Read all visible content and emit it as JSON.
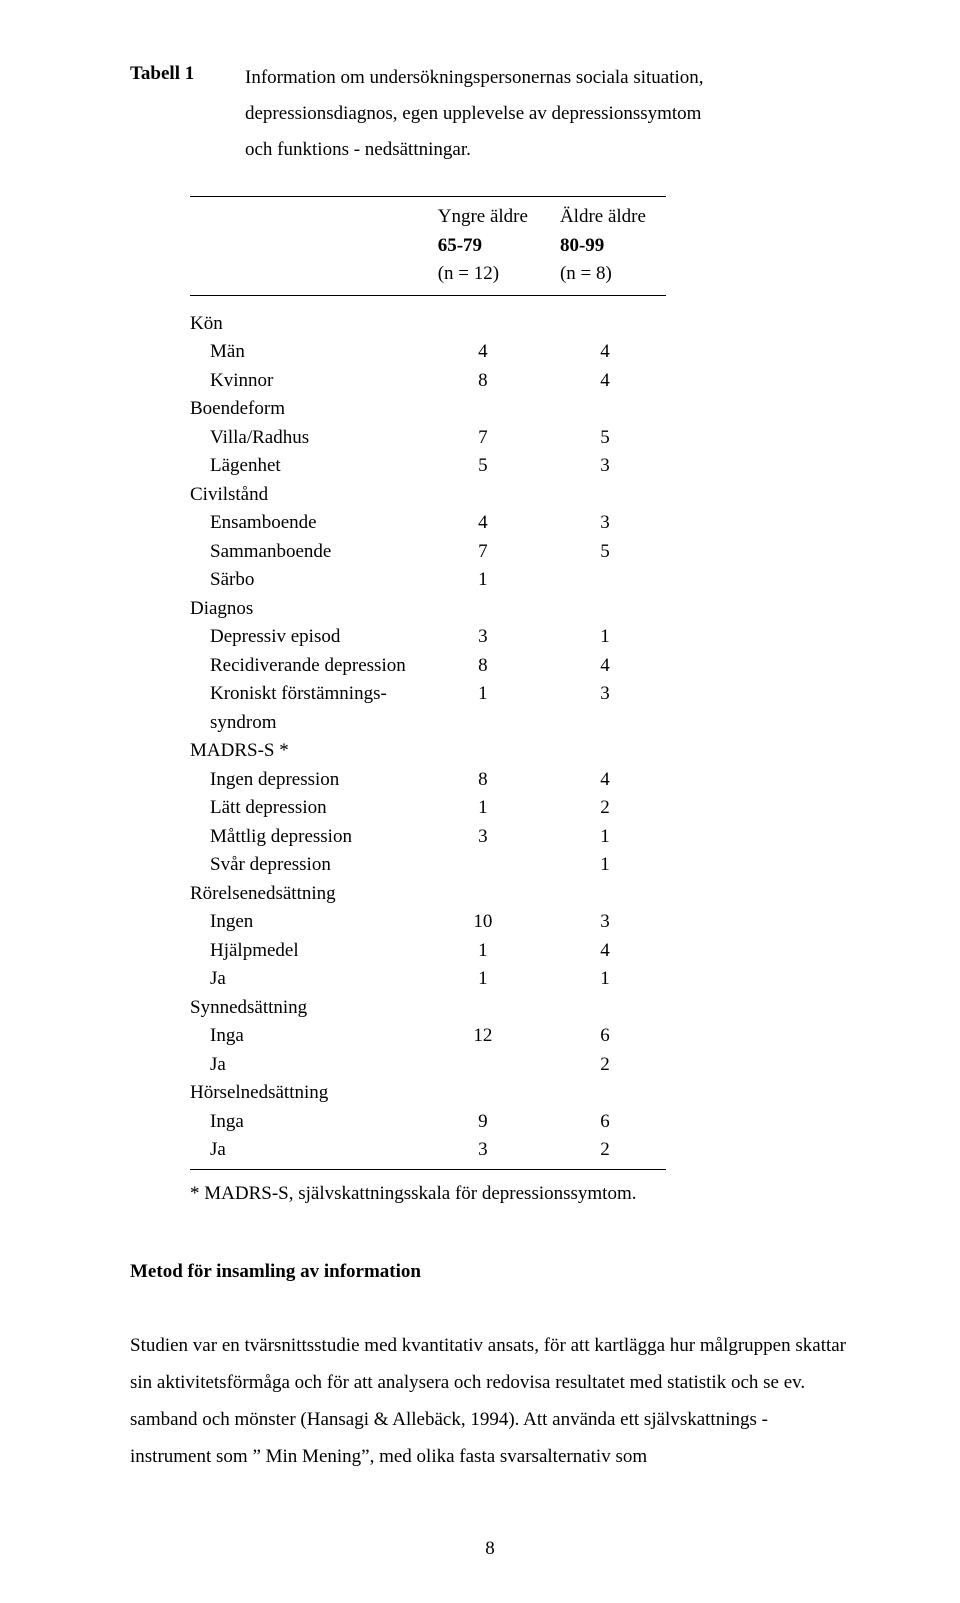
{
  "title": {
    "label": "Tabell 1",
    "text_line1": "Information om undersökningspersonernas sociala situation,",
    "text_line2": "depressionsdiagnos, egen upplevelse av depressionssymtom",
    "text_line3": "och funktions - nedsättningar."
  },
  "table": {
    "header": {
      "col1_line1": "Yngre äldre",
      "col1_line2": "65-79",
      "col1_line3": "(n = 12)",
      "col2_line1": "Äldre äldre",
      "col2_line2": "80-99",
      "col2_line3": "(n = 8)"
    },
    "rows": [
      {
        "type": "section",
        "label": "Kön"
      },
      {
        "type": "sub",
        "label": "Män",
        "c1": "4",
        "c2": "4"
      },
      {
        "type": "sub",
        "label": "Kvinnor",
        "c1": "8",
        "c2": "4"
      },
      {
        "type": "section",
        "label": "Boendeform"
      },
      {
        "type": "sub",
        "label": "Villa/Radhus",
        "c1": "7",
        "c2": "5"
      },
      {
        "type": "sub",
        "label": "Lägenhet",
        "c1": "5",
        "c2": "3"
      },
      {
        "type": "section",
        "label": "Civilstånd"
      },
      {
        "type": "sub",
        "label": "Ensamboende",
        "c1": "4",
        "c2": "3"
      },
      {
        "type": "sub",
        "label": "Sammanboende",
        "c1": "7",
        "c2": "5"
      },
      {
        "type": "sub",
        "label": "Särbo",
        "c1": "1",
        "c2": ""
      },
      {
        "type": "section",
        "label": "Diagnos"
      },
      {
        "type": "sub",
        "label": "Depressiv episod",
        "c1": "3",
        "c2": "1"
      },
      {
        "type": "sub",
        "label": "Recidiverande depression",
        "c1": "8",
        "c2": "4"
      },
      {
        "type": "sub",
        "label": "Kroniskt förstämnings-",
        "c1": "1",
        "c2": "3"
      },
      {
        "type": "sub",
        "label": "syndrom",
        "c1": "",
        "c2": ""
      },
      {
        "type": "section",
        "label": "MADRS-S *"
      },
      {
        "type": "sub",
        "label": "Ingen depression",
        "c1": "8",
        "c2": "4"
      },
      {
        "type": "sub",
        "label": "Lätt depression",
        "c1": "1",
        "c2": "2"
      },
      {
        "type": "sub",
        "label": "Måttlig depression",
        "c1": "3",
        "c2": "1"
      },
      {
        "type": "sub",
        "label": "Svår depression",
        "c1": "",
        "c2": "1"
      },
      {
        "type": "section",
        "label": "Rörelsenedsättning"
      },
      {
        "type": "sub",
        "label": "Ingen",
        "c1": "10",
        "c2": "3"
      },
      {
        "type": "sub",
        "label": "Hjälpmedel",
        "c1": "1",
        "c2": "4"
      },
      {
        "type": "sub",
        "label": "Ja",
        "c1": "1",
        "c2": "1"
      },
      {
        "type": "section",
        "label": "Synnedsättning"
      },
      {
        "type": "sub",
        "label": "Inga",
        "c1": "12",
        "c2": "6"
      },
      {
        "type": "sub",
        "label": "Ja",
        "c1": "",
        "c2": "2"
      },
      {
        "type": "section",
        "label": "Hörselnedsättning"
      },
      {
        "type": "sub",
        "label": "Inga",
        "c1": "9",
        "c2": "6"
      },
      {
        "type": "sub",
        "label": "Ja",
        "c1": "3",
        "c2": "2",
        "last": true
      }
    ],
    "footnote": "* MADRS-S, självskattningsskala för depressionssymtom."
  },
  "method": {
    "heading": "Metod för insamling av information",
    "body": "Studien var en tvärsnittsstudie med kvantitativ ansats, för att kartlägga hur målgruppen skattar sin aktivitetsförmåga och för att analysera och redovisa resultatet med statistik och se ev. samband och mönster (Hansagi & Allebäck, 1994). Att använda ett självskattnings - instrument  som ” Min Mening”, med olika fasta svarsalternativ som"
  },
  "page_number": "8"
}
